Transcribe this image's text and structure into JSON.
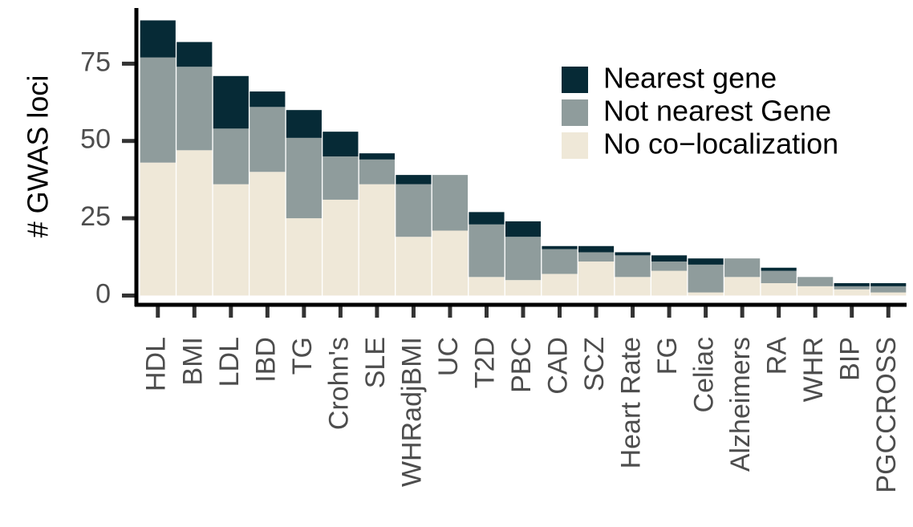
{
  "chart_data": {
    "type": "stacked_bar",
    "y_label": "# GWAS loci",
    "categories": [
      "HDL",
      "BMI",
      "LDL",
      "IBD",
      "TG",
      "Crohn's",
      "SLE",
      "WHRadjBMI",
      "UC",
      "T2D",
      "PBC",
      "CAD",
      "SCZ",
      "Heart Rate",
      "FG",
      "Celiac",
      "Alzheimers",
      "RA",
      "WHR",
      "BIP",
      "PGCCROSS"
    ],
    "series": [
      {
        "name": "Nearest gene",
        "color": "#062a36",
        "values": [
          12,
          8,
          17,
          5,
          9,
          8,
          2,
          3,
          0,
          4,
          5,
          1,
          2,
          1,
          2,
          2,
          0,
          1,
          0,
          1,
          1
        ]
      },
      {
        "name": "Not nearest Gene",
        "color": "#8f9c9c",
        "values": [
          34,
          27,
          18,
          21,
          26,
          14,
          8,
          17,
          18,
          17,
          14,
          8,
          3,
          7,
          3,
          9,
          6,
          4,
          3,
          1,
          2
        ]
      },
      {
        "name": "No co−localization",
        "color": "#efe8d8",
        "values": [
          43,
          47,
          36,
          40,
          25,
          31,
          36,
          19,
          21,
          6,
          5,
          7,
          11,
          6,
          8,
          1,
          6,
          4,
          3,
          2,
          1
        ]
      }
    ],
    "ylim": [
      -3,
      93
    ],
    "yticks": [
      0,
      25,
      50,
      75
    ],
    "legend": "top-right"
  }
}
